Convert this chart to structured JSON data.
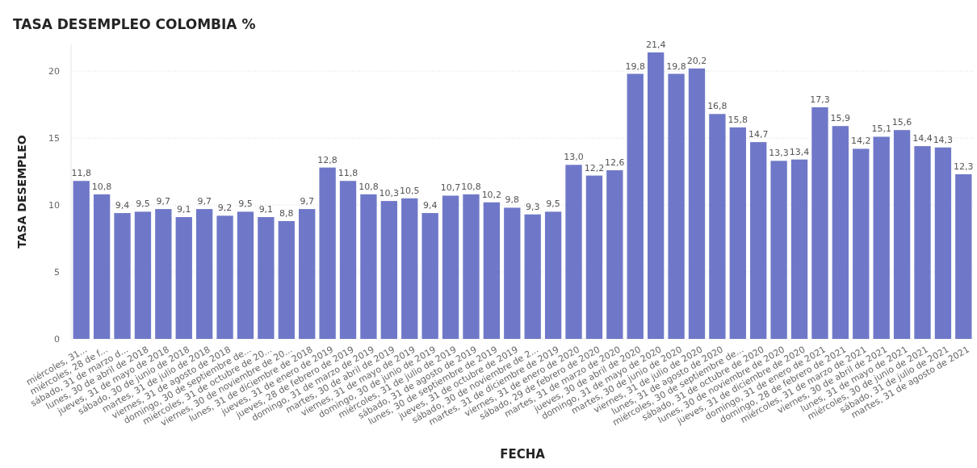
{
  "chart_data": {
    "type": "bar",
    "title": "TASA DESEMPLEO COLOMBIA %",
    "xlabel": "FECHA",
    "ylabel": "TASA DESEMPLEO",
    "categories": [
      "miércoles, 31...",
      "miércoles, 28 de f...",
      "sábado, 31 de marzo d...",
      "lunes, 30 de abril de 2018",
      "jueves, 31 de mayo de 2018",
      "sábado, 30 de junio de 2018",
      "martes, 31 de julio de 2018",
      "viernes, 31 de agosto de 2018",
      "domingo, 30 de septiembre de...",
      "miércoles, 31 de octubre de 20...",
      "viernes, 30 de noviembre de 20...",
      "lunes, 31 de diciembre de 2018",
      "jueves, 31 de enero de 2019",
      "jueves, 28 de febrero de 2019",
      "domingo, 31 de marzo de 2019",
      "martes, 30 de abril de 2019",
      "viernes, 31 de mayo de 2019",
      "domingo, 30 de junio de 2019",
      "miércoles, 31 de julio de 2019",
      "sábado, 31 de agosto de 2019",
      "lunes, 30 de septiembre de 2019",
      "jueves, 31 de octubre de 2019",
      "sábado, 30 de noviembre de 2...",
      "martes, 31 de diciembre de 2019",
      "viernes, 31 de enero de 2020",
      "sábado, 29 de febrero de 2020",
      "martes, 31 de marzo de 2020",
      "jueves, 30 de abril de 2020",
      "domingo, 31 de mayo de 2020",
      "martes, 30 de junio de 2020",
      "viernes, 31 de julio de 2020",
      "lunes, 31 de agosto de 2020",
      "miércoles, 30 de septiembre de...",
      "sábado, 31 de octubre de 2020",
      "lunes, 30 de noviembre de 2020",
      "jueves, 31 de diciembre de 2020",
      "domingo, 31 de enero de 2021",
      "domingo, 28 de febrero de 2021",
      "miércoles, 31 de marzo de 2021",
      "viernes, 30 de abril de 2021",
      "lunes, 31 de mayo de 2021",
      "miércoles, 30 de junio de 2021",
      "sábado, 31 de julio de 2021",
      "martes, 31 de agosto de 2021"
    ],
    "values": [
      11.8,
      10.8,
      9.4,
      9.5,
      9.7,
      9.1,
      9.7,
      9.2,
      9.5,
      9.1,
      8.8,
      9.7,
      12.8,
      11.8,
      10.8,
      10.3,
      10.5,
      9.4,
      10.7,
      10.8,
      10.2,
      9.8,
      9.3,
      9.5,
      13.0,
      12.2,
      12.6,
      19.8,
      21.4,
      19.8,
      20.2,
      16.8,
      15.8,
      14.7,
      13.3,
      13.4,
      17.3,
      15.9,
      14.2,
      15.1,
      15.6,
      14.4,
      14.3,
      12.3
    ],
    "value_labels": [
      "11,8",
      "10,8",
      "9,4",
      "9,5",
      "9,7",
      "9,1",
      "9,7",
      "9,2",
      "9,5",
      "9,1",
      "8,8",
      "9,7",
      "12,8",
      "11,8",
      "10,8",
      "10,3",
      "10,5",
      "9,4",
      "10,7",
      "10,8",
      "10,2",
      "9,8",
      "9,3",
      "9,5",
      "13,0",
      "12,2",
      "12,6",
      "19,8",
      "21,4",
      "19,8",
      "20,2",
      "16,8",
      "15,8",
      "14,7",
      "13,3",
      "13,4",
      "17,3",
      "15,9",
      "14,2",
      "15,1",
      "15,6",
      "14,4",
      "14,3",
      "12,3"
    ],
    "color": "#6f78c8",
    "ylim": [
      0,
      22
    ],
    "yticks": [
      0,
      5,
      10,
      15,
      20
    ],
    "grid": "y"
  }
}
